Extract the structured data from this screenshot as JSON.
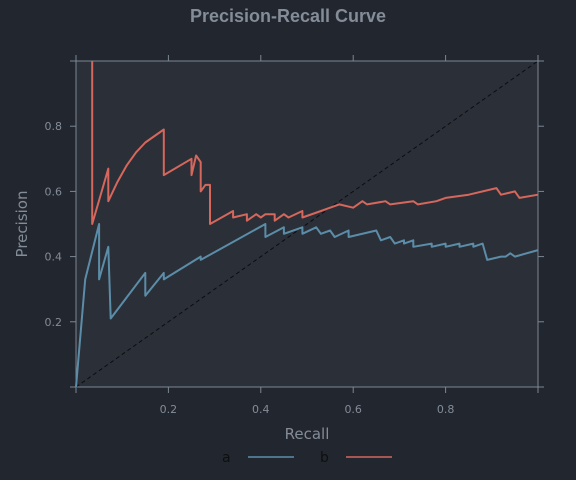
{
  "colors": {
    "background": "#22262e",
    "panel": "#2b2f38",
    "frame": "#7d8793",
    "text": "#848c97",
    "legend_text": "#0e0f10",
    "series_a": "#5b8da8",
    "series_b": "#d5675c",
    "diagonal": "#0c0d10"
  },
  "chart_data": {
    "type": "line",
    "title": "Precision-Recall Curve",
    "xlabel": "Recall",
    "ylabel": "Precision",
    "xlim": [
      0,
      1
    ],
    "ylim": [
      0,
      1
    ],
    "xticks": [
      0.2,
      0.4,
      0.6,
      0.8
    ],
    "yticks": [
      0.2,
      0.4,
      0.6,
      0.8
    ],
    "grid": false,
    "legend_position": "bottom",
    "reference_line": {
      "style": "dashed",
      "points": [
        [
          0,
          0
        ],
        [
          1,
          1
        ]
      ]
    },
    "series": [
      {
        "name": "a",
        "points": [
          [
            0,
            0
          ],
          [
            0.02,
            0.33
          ],
          [
            0.05,
            0.5
          ],
          [
            0.05,
            0.33
          ],
          [
            0.07,
            0.43
          ],
          [
            0.075,
            0.21
          ],
          [
            0.15,
            0.35
          ],
          [
            0.15,
            0.28
          ],
          [
            0.19,
            0.35
          ],
          [
            0.19,
            0.33
          ],
          [
            0.27,
            0.4
          ],
          [
            0.27,
            0.39
          ],
          [
            0.41,
            0.5
          ],
          [
            0.41,
            0.46
          ],
          [
            0.45,
            0.49
          ],
          [
            0.45,
            0.47
          ],
          [
            0.49,
            0.49
          ],
          [
            0.49,
            0.47
          ],
          [
            0.52,
            0.49
          ],
          [
            0.53,
            0.47
          ],
          [
            0.55,
            0.48
          ],
          [
            0.56,
            0.46
          ],
          [
            0.59,
            0.48
          ],
          [
            0.59,
            0.46
          ],
          [
            0.65,
            0.48
          ],
          [
            0.66,
            0.45
          ],
          [
            0.68,
            0.46
          ],
          [
            0.69,
            0.44
          ],
          [
            0.71,
            0.45
          ],
          [
            0.71,
            0.44
          ],
          [
            0.73,
            0.45
          ],
          [
            0.73,
            0.43
          ],
          [
            0.77,
            0.44
          ],
          [
            0.77,
            0.43
          ],
          [
            0.8,
            0.44
          ],
          [
            0.8,
            0.43
          ],
          [
            0.83,
            0.44
          ],
          [
            0.83,
            0.43
          ],
          [
            0.86,
            0.44
          ],
          [
            0.86,
            0.43
          ],
          [
            0.88,
            0.44
          ],
          [
            0.89,
            0.39
          ],
          [
            0.92,
            0.4
          ],
          [
            0.93,
            0.4
          ],
          [
            0.94,
            0.41
          ],
          [
            0.95,
            0.4
          ],
          [
            1,
            0.42
          ]
        ]
      },
      {
        "name": "b",
        "points": [
          [
            0.035,
            1
          ],
          [
            0.035,
            0.5
          ],
          [
            0.07,
            0.67
          ],
          [
            0.07,
            0.57
          ],
          [
            0.09,
            0.63
          ],
          [
            0.11,
            0.68
          ],
          [
            0.13,
            0.72
          ],
          [
            0.15,
            0.75
          ],
          [
            0.19,
            0.79
          ],
          [
            0.19,
            0.65
          ],
          [
            0.25,
            0.7
          ],
          [
            0.25,
            0.65
          ],
          [
            0.26,
            0.71
          ],
          [
            0.27,
            0.69
          ],
          [
            0.27,
            0.6
          ],
          [
            0.28,
            0.62
          ],
          [
            0.29,
            0.62
          ],
          [
            0.29,
            0.5
          ],
          [
            0.34,
            0.54
          ],
          [
            0.34,
            0.52
          ],
          [
            0.37,
            0.53
          ],
          [
            0.37,
            0.51
          ],
          [
            0.39,
            0.53
          ],
          [
            0.4,
            0.52
          ],
          [
            0.41,
            0.53
          ],
          [
            0.43,
            0.53
          ],
          [
            0.43,
            0.51
          ],
          [
            0.45,
            0.53
          ],
          [
            0.46,
            0.52
          ],
          [
            0.49,
            0.54
          ],
          [
            0.49,
            0.52
          ],
          [
            0.53,
            0.54
          ],
          [
            0.55,
            0.55
          ],
          [
            0.57,
            0.56
          ],
          [
            0.6,
            0.55
          ],
          [
            0.62,
            0.57
          ],
          [
            0.63,
            0.56
          ],
          [
            0.67,
            0.57
          ],
          [
            0.68,
            0.56
          ],
          [
            0.73,
            0.57
          ],
          [
            0.74,
            0.56
          ],
          [
            0.78,
            0.57
          ],
          [
            0.8,
            0.58
          ],
          [
            0.85,
            0.59
          ],
          [
            0.91,
            0.61
          ],
          [
            0.92,
            0.59
          ],
          [
            0.95,
            0.6
          ],
          [
            0.96,
            0.58
          ],
          [
            1,
            0.59
          ]
        ]
      }
    ]
  }
}
